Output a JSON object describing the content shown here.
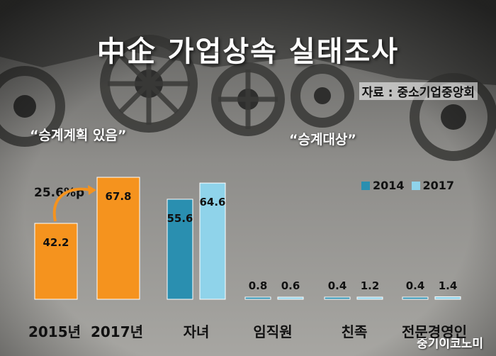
{
  "title": "中企 가업상속 실태조사",
  "source": "자료 : 중소기업중앙회",
  "section_plan": "“승계계획 있음”",
  "section_target": "“승계대상”",
  "growth_note": "25.6%p",
  "watermark": "중기이코노미",
  "colors": {
    "orange": "#f5931e",
    "s2014": "#2a8fb0",
    "s2017": "#8fd3ea"
  },
  "chart_data": [
    {
      "type": "bar",
      "title": "“승계계획 있음”",
      "categories": [
        "2015년",
        "2017년"
      ],
      "values": [
        42.2,
        67.8
      ],
      "value_labels": [
        "42.2",
        "67.8"
      ],
      "annotation": "25.6%p",
      "ylim": [
        0,
        67.8
      ]
    },
    {
      "type": "bar",
      "title": "“승계대상”",
      "categories": [
        "자녀",
        "임직원",
        "친족",
        "전문경영인"
      ],
      "series": [
        {
          "name": "2014",
          "values": [
            55.6,
            0.8,
            0.4,
            0.4
          ],
          "labels": [
            "55.6",
            "0.8",
            "0.4",
            "0.4"
          ]
        },
        {
          "name": "2017",
          "values": [
            64.6,
            0.6,
            1.2,
            1.4
          ],
          "labels": [
            "64.6",
            "0.6",
            "1.2",
            "1.4"
          ]
        }
      ],
      "legend_position": "top-right",
      "ylim": [
        0,
        67.8
      ]
    }
  ]
}
